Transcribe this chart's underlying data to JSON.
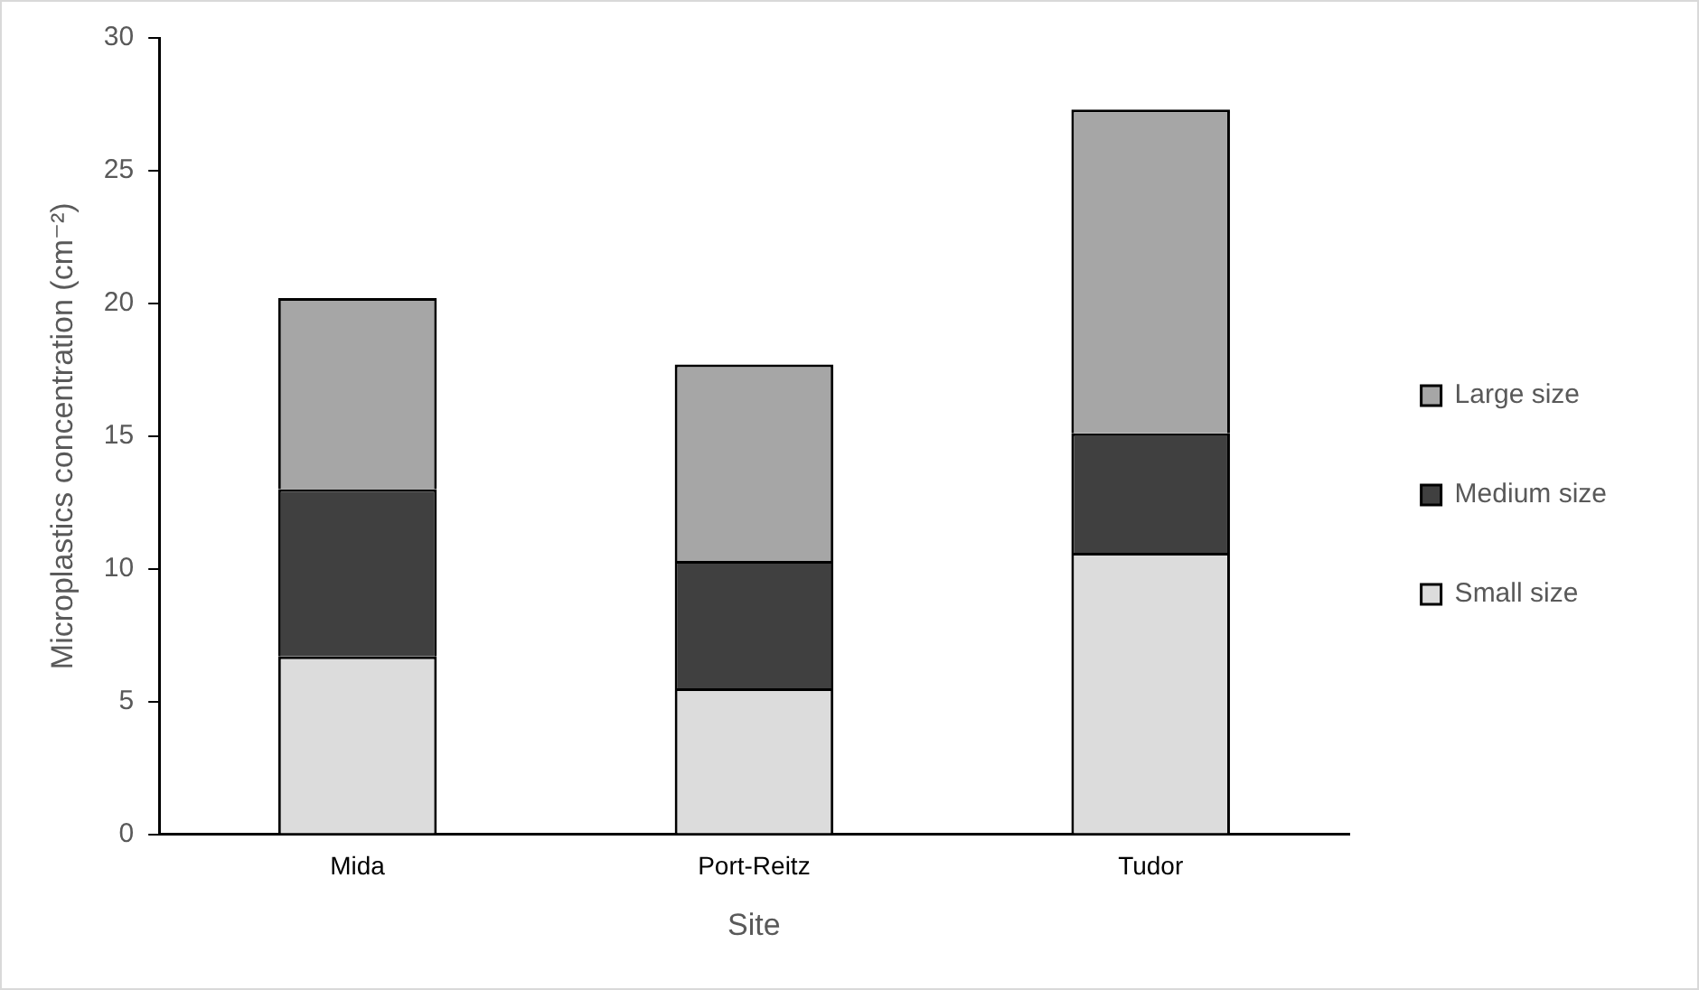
{
  "chart_data": {
    "type": "bar",
    "stacked": true,
    "xlabel": "Site",
    "ylabel": "Microplastics concentration (cm⁻²)",
    "categories": [
      "Mida",
      "Port-Reitz",
      "Tudor"
    ],
    "series": [
      {
        "name": "Small size",
        "color": "#dcdcdc",
        "values": [
          6.7,
          5.5,
          10.6
        ]
      },
      {
        "name": "Medium size",
        "color": "#404040",
        "values": [
          6.3,
          4.8,
          4.5
        ]
      },
      {
        "name": "Large size",
        "color": "#a6a6a6",
        "values": [
          7.2,
          7.4,
          12.2
        ]
      }
    ],
    "ylim": [
      0,
      30
    ],
    "yticks": [
      0,
      5,
      10,
      15,
      20,
      25,
      30
    ],
    "grid": false,
    "legend": "right"
  }
}
